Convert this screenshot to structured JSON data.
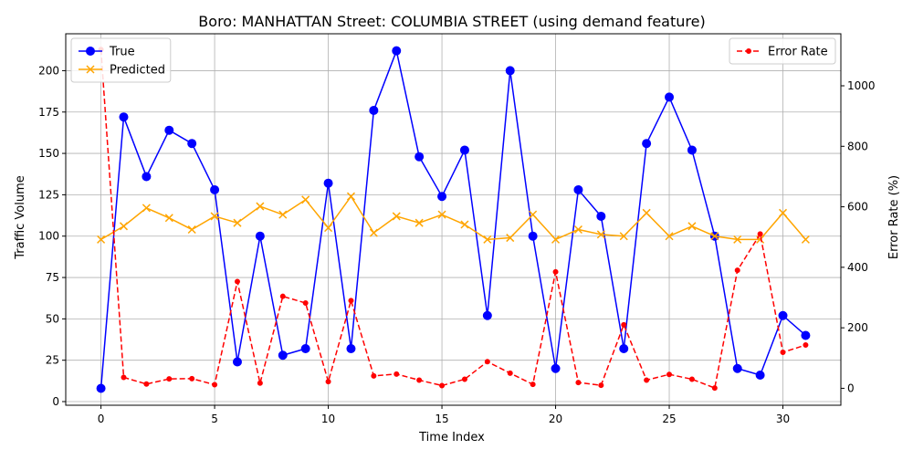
{
  "chart_data": {
    "type": "line",
    "title": "Boro: MANHATTAN Street: COLUMBIA STREET (using demand feature)",
    "xlabel": "Time Index",
    "ylabel": "Traffic Volume",
    "y2label": "Error Rate (%)",
    "xlim": [
      -1.55,
      32.55
    ],
    "ylim": [
      -2.2,
      222.3
    ],
    "y2lim": [
      -56,
      1172
    ],
    "x_ticks": [
      0,
      5,
      10,
      15,
      20,
      25,
      30
    ],
    "y_ticks": [
      0,
      25,
      50,
      75,
      100,
      125,
      150,
      175,
      200
    ],
    "y2_ticks": [
      0,
      200,
      400,
      600,
      800,
      1000
    ],
    "grid": true,
    "x": [
      0,
      1,
      2,
      3,
      4,
      5,
      6,
      7,
      8,
      9,
      10,
      11,
      12,
      13,
      14,
      15,
      16,
      17,
      18,
      19,
      20,
      21,
      22,
      23,
      24,
      25,
      26,
      27,
      28,
      29,
      30,
      31
    ],
    "series": [
      {
        "name": "True",
        "axis": "left",
        "color": "#0000ff",
        "style": "solid",
        "marker": "circle",
        "values": [
          8,
          172,
          136,
          164,
          156,
          128,
          24,
          100,
          28,
          32,
          132,
          32,
          176,
          212,
          148,
          124,
          152,
          52,
          200,
          100,
          20,
          128,
          112,
          32,
          156,
          184,
          152,
          100,
          20,
          16,
          52,
          40
        ]
      },
      {
        "name": "Predicted",
        "axis": "left",
        "color": "#ffa500",
        "style": "solid",
        "marker": "x",
        "values": [
          98,
          106,
          117,
          111,
          104,
          112,
          108,
          118,
          113,
          122,
          105,
          124,
          102,
          112,
          108,
          113,
          107,
          98,
          99,
          113,
          98,
          104,
          101,
          100,
          114,
          100,
          106,
          100,
          98,
          98,
          114,
          98
        ]
      },
      {
        "name": "Error Rate",
        "axis": "right",
        "color": "#ff0000",
        "style": "dashed",
        "marker": "dot",
        "values": [
          1120,
          36,
          14,
          31,
          32,
          12,
          353,
          17,
          304,
          282,
          22,
          290,
          41,
          47,
          27,
          9,
          30,
          88,
          50,
          13,
          385,
          19,
          10,
          210,
          27,
          46,
          30,
          1,
          390,
          510,
          119,
          143
        ]
      }
    ],
    "legend_left": {
      "position": "upper-left",
      "entries": [
        "True",
        "Predicted"
      ]
    },
    "legend_right": {
      "position": "upper-right",
      "entries": [
        "Error Rate"
      ]
    }
  }
}
